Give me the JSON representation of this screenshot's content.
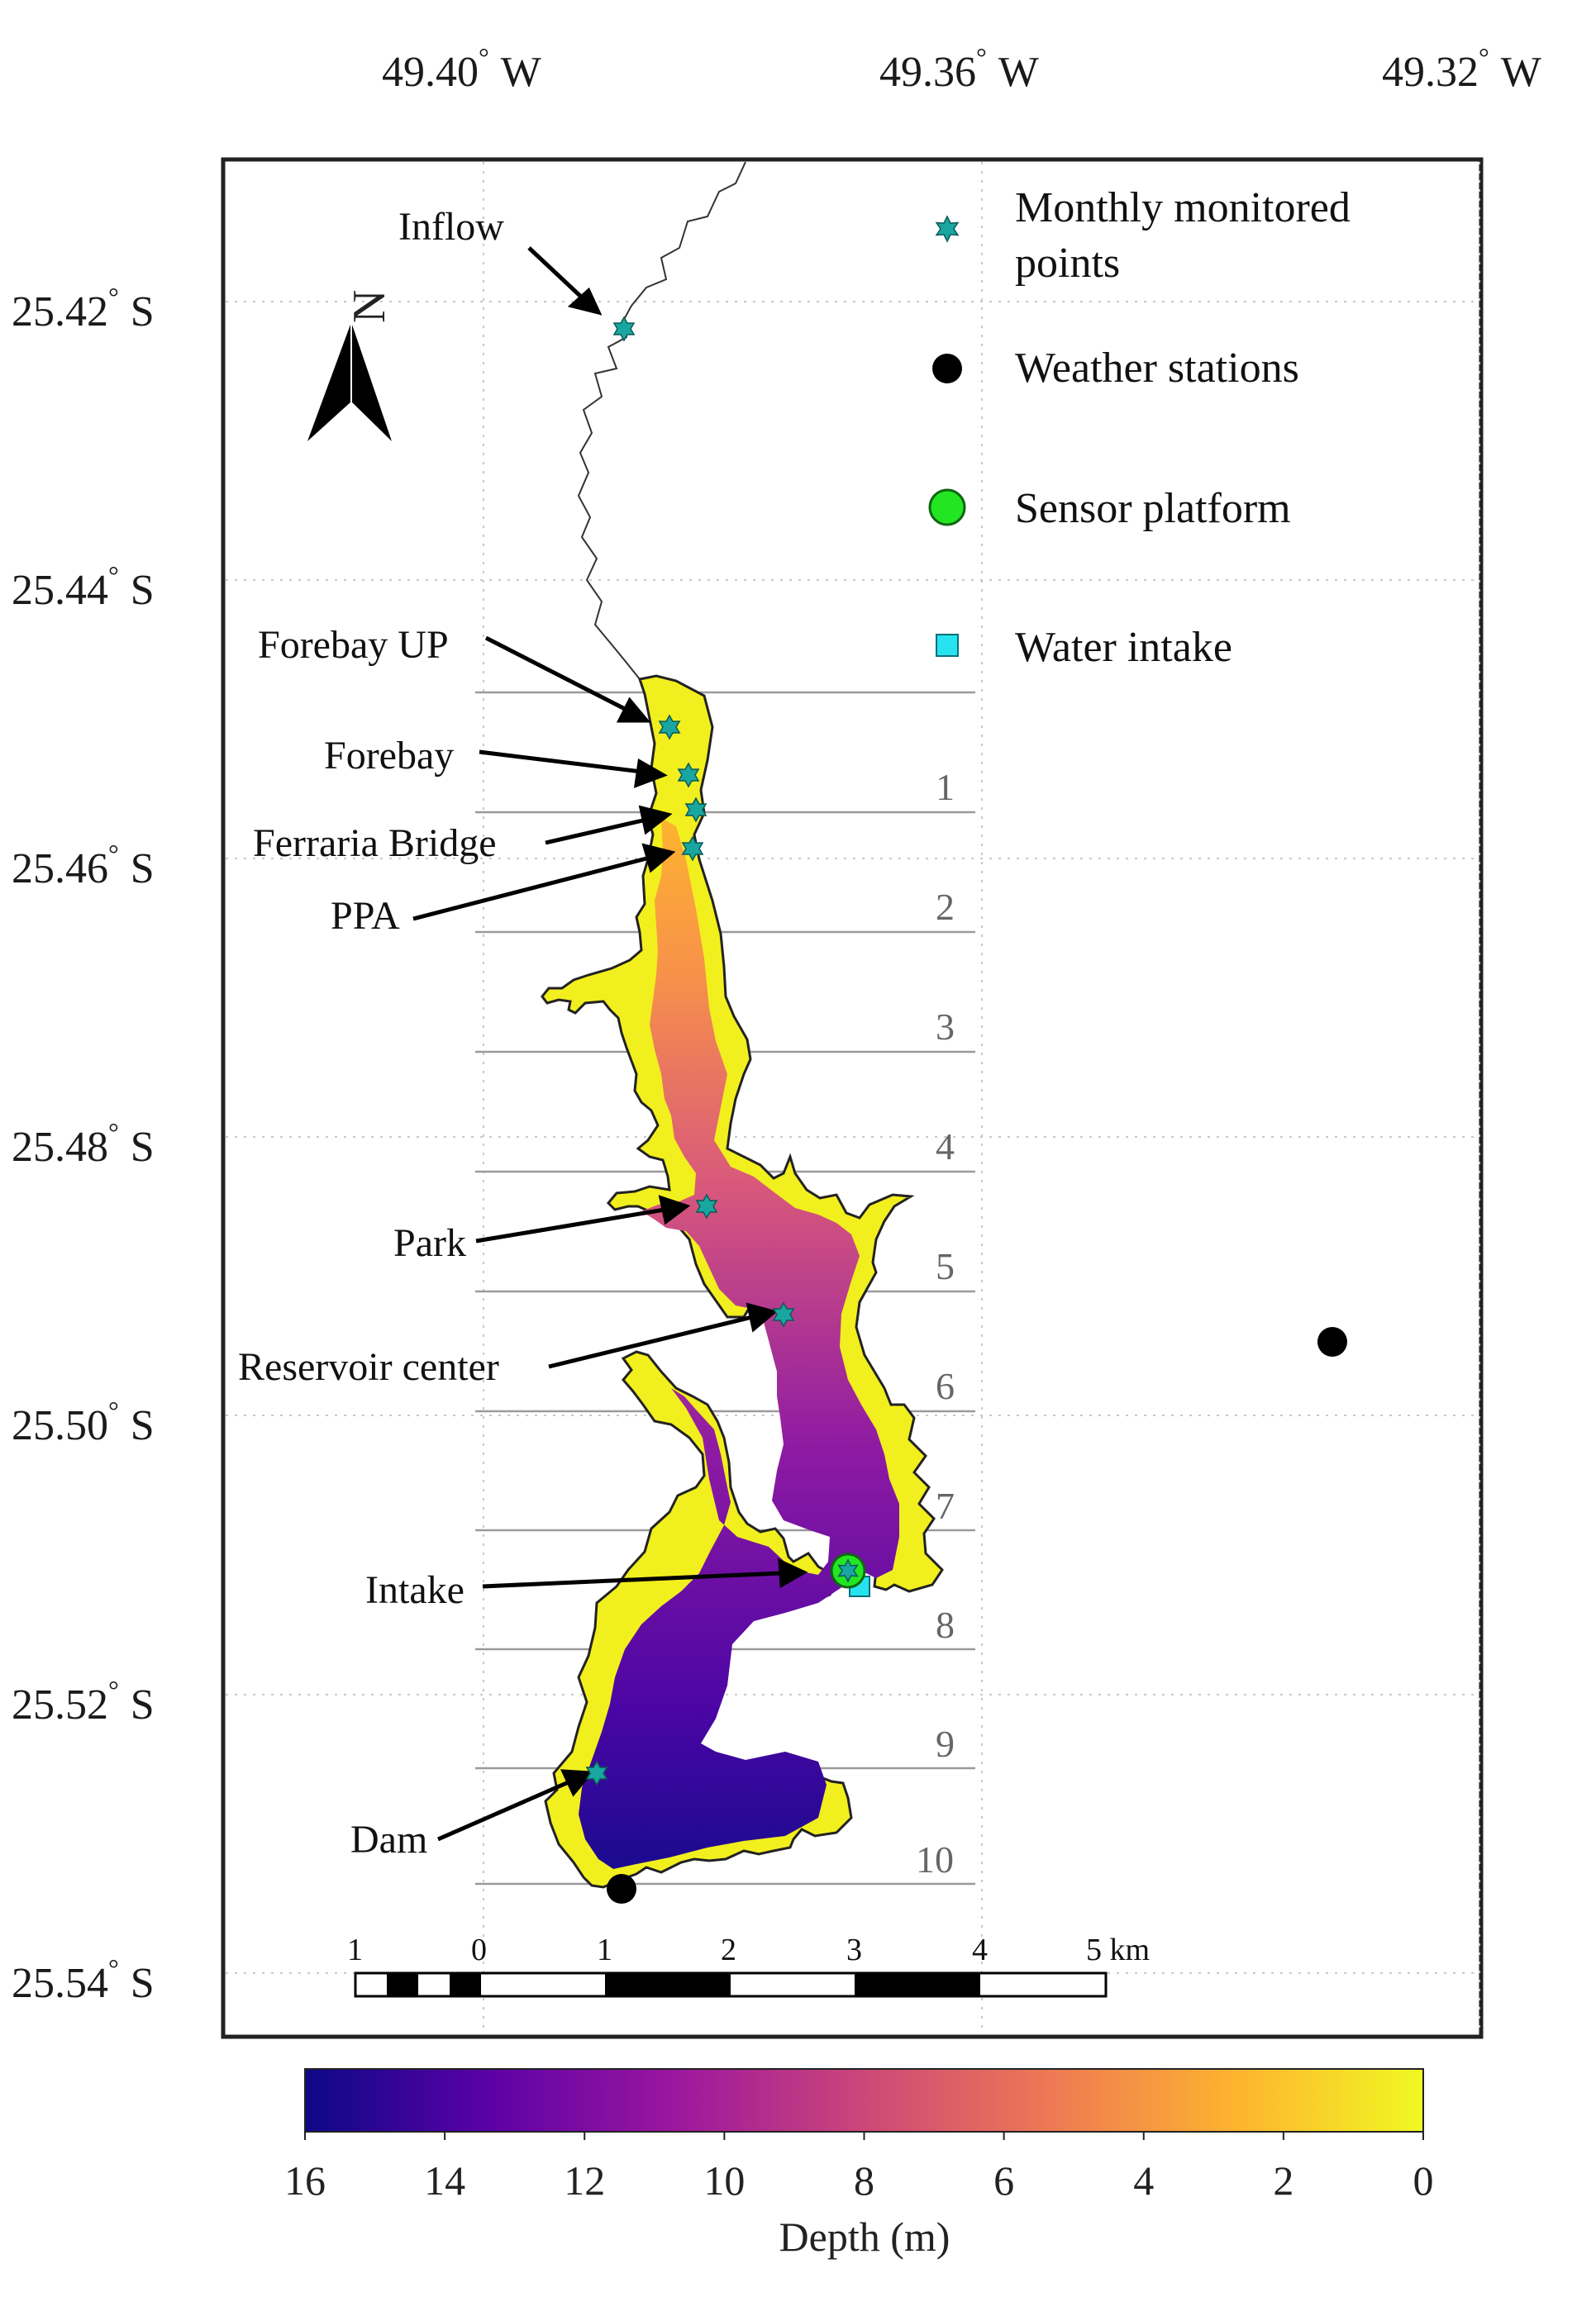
{
  "axes": {
    "lon_ticks": [
      {
        "deg": "49.40",
        "hemi": "W"
      },
      {
        "deg": "49.36",
        "hemi": "W"
      },
      {
        "deg": "49.32",
        "hemi": "W"
      }
    ],
    "lat_ticks": [
      {
        "deg": "25.42",
        "hemi": "S"
      },
      {
        "deg": "25.44",
        "hemi": "S"
      },
      {
        "deg": "25.46",
        "hemi": "S"
      },
      {
        "deg": "25.48",
        "hemi": "S"
      },
      {
        "deg": "25.50",
        "hemi": "S"
      },
      {
        "deg": "25.52",
        "hemi": "S"
      },
      {
        "deg": "25.54",
        "hemi": "S"
      }
    ],
    "degree_symbol": "°"
  },
  "north_arrow": {
    "label": "N"
  },
  "site_labels": {
    "inflow": "Inflow",
    "forebay_up": "Forebay UP",
    "forebay": "Forebay",
    "ferraria_bridge": "Ferraria Bridge",
    "ppa": "PPA",
    "park": "Park",
    "reservoir_center": "Reservoir center",
    "intake": "Intake",
    "dam": "Dam"
  },
  "zones": [
    "1",
    "2",
    "3",
    "4",
    "5",
    "6",
    "7",
    "8",
    "9",
    "10"
  ],
  "legend": {
    "monitored": {
      "line1": "Monthly monitored",
      "line2": "points",
      "color": "#1aa6a0"
    },
    "weather": {
      "label": "Weather stations",
      "color": "#000000"
    },
    "sensor": {
      "label": "Sensor platform",
      "color": "#22e622"
    },
    "intake": {
      "label": "Water intake",
      "color": "#27e3f0"
    }
  },
  "scale_bar": {
    "labels": [
      "1",
      "0",
      "1",
      "2",
      "3",
      "4",
      "5 km"
    ]
  },
  "colorbar": {
    "ticks": [
      "16",
      "14",
      "12",
      "10",
      "8",
      "6",
      "4",
      "2",
      "0"
    ],
    "title": "Depth (m)",
    "colors": [
      "#0d0887",
      "#5c01a6",
      "#9c179e",
      "#cc4778",
      "#ed7953",
      "#fdb32f",
      "#f0f921"
    ]
  }
}
